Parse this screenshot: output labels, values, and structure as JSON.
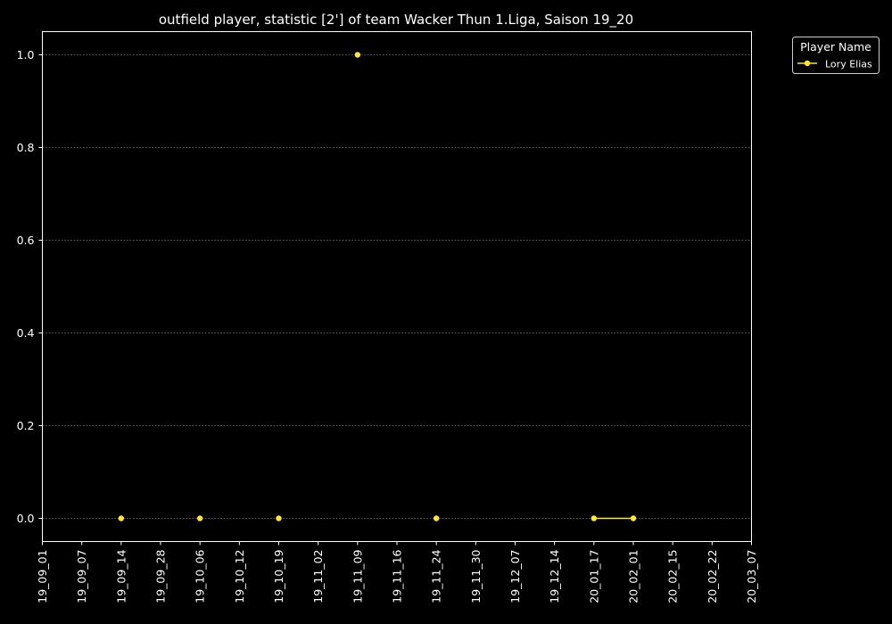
{
  "chart_data": {
    "type": "line",
    "title": "outfield player, statistic [2'] of team Wacker Thun 1.Liga, Saison 19_20",
    "xlabel": "",
    "ylabel": "",
    "x_ticks": [
      "19_09_01",
      "19_09_07",
      "19_09_14",
      "19_09_28",
      "19_10_06",
      "19_10_12",
      "19_10_19",
      "19_11_02",
      "19_11_09",
      "19_11_16",
      "19_11_24",
      "19_11_30",
      "19_12_07",
      "19_12_14",
      "20_01_17",
      "20_02_01",
      "20_02_15",
      "20_02_22",
      "20_03_07"
    ],
    "y_ticks": [
      "0.0",
      "0.2",
      "0.4",
      "0.6",
      "0.8",
      "1.0"
    ],
    "ylim": [
      -0.05,
      1.05
    ],
    "grid": true,
    "legend": {
      "title": "Player Name",
      "placement": "upper-right-outside"
    },
    "series": [
      {
        "name": "Lory Elias",
        "color": "#ffe733",
        "points": [
          {
            "x": "19_09_14",
            "y": 0
          },
          {
            "x": "19_10_06",
            "y": 0
          },
          {
            "x": "19_10_19",
            "y": 0
          },
          {
            "x": "19_11_09",
            "y": 1
          },
          {
            "x": "19_11_24",
            "y": 0
          },
          {
            "x": "20_01_17",
            "y": 0
          },
          {
            "x": "20_02_01",
            "y": 0
          }
        ],
        "connected_segments": [
          [
            "20_01_17",
            "20_02_01"
          ]
        ]
      }
    ]
  }
}
